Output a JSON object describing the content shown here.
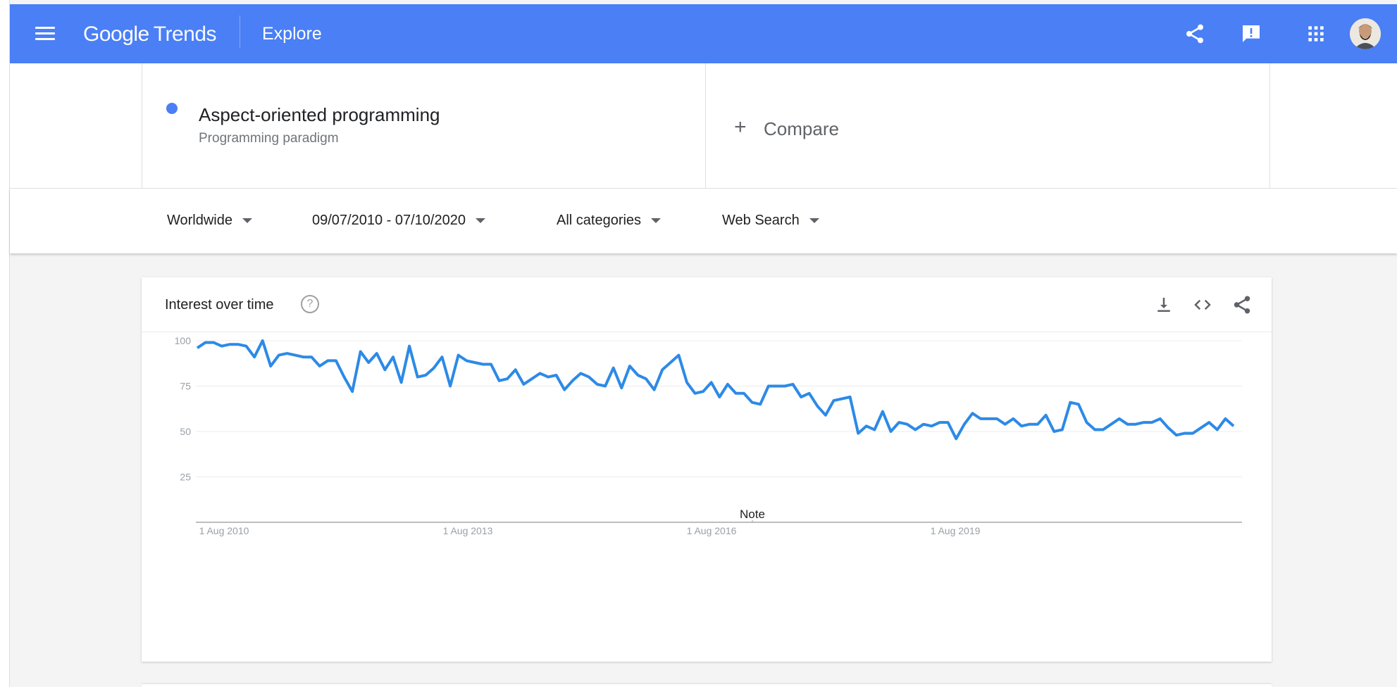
{
  "header": {
    "logo_google": "Google",
    "logo_trends": "Trends",
    "title": "Explore",
    "icons": [
      "menu-icon",
      "share-icon",
      "feedback-icon",
      "apps-icon",
      "avatar"
    ],
    "accent_color": "#4a7ff5"
  },
  "search_term": {
    "title": "Aspect-oriented programming",
    "subtitle": "Programming paradigm",
    "color": "#4a7ff5"
  },
  "compare": {
    "label": "Compare"
  },
  "filters": {
    "geo": "Worldwide",
    "date_range": "09/07/2010 - 07/10/2020",
    "category": "All categories",
    "search_type": "Web Search"
  },
  "card": {
    "title": "Interest over time",
    "help": "?",
    "icons": [
      "download-icon",
      "embed-icon",
      "share-icon"
    ]
  },
  "chart_data": {
    "type": "line",
    "title": "",
    "xlabel": "",
    "ylabel": "",
    "ylim": [
      0,
      100
    ],
    "yticks": [
      25,
      50,
      75,
      100
    ],
    "xtick_labels": [
      "1 Aug 2010",
      "1 Aug 2013",
      "1 Aug 2016",
      "1 Aug 2019"
    ],
    "grid": true,
    "annotation": "Note",
    "line_color": "#2d8ae6",
    "values": [
      96,
      99,
      99,
      97,
      98,
      98,
      97,
      91,
      100,
      86,
      92,
      93,
      92,
      91,
      91,
      86,
      89,
      89,
      80,
      72,
      94,
      88,
      93,
      84,
      91,
      77,
      97,
      80,
      81,
      85,
      91,
      75,
      92,
      89,
      88,
      87,
      87,
      78,
      79,
      84,
      76,
      79,
      82,
      80,
      81,
      73,
      78,
      82,
      80,
      76,
      75,
      85,
      74,
      86,
      81,
      79,
      73,
      84,
      88,
      92,
      77,
      71,
      72,
      77,
      69,
      76,
      71,
      71,
      66,
      65,
      75,
      75,
      75,
      76,
      69,
      71,
      64,
      59,
      67,
      68,
      69,
      49,
      53,
      51,
      61,
      50,
      55,
      54,
      51,
      54,
      53,
      55,
      55,
      46,
      54,
      60,
      57,
      57,
      57,
      54,
      57,
      53,
      54,
      54,
      59,
      50,
      51,
      66,
      65,
      55,
      51,
      51,
      54,
      57,
      54,
      54,
      55,
      55,
      57,
      52,
      48,
      49,
      49,
      52,
      55,
      51,
      57,
      53
    ]
  }
}
